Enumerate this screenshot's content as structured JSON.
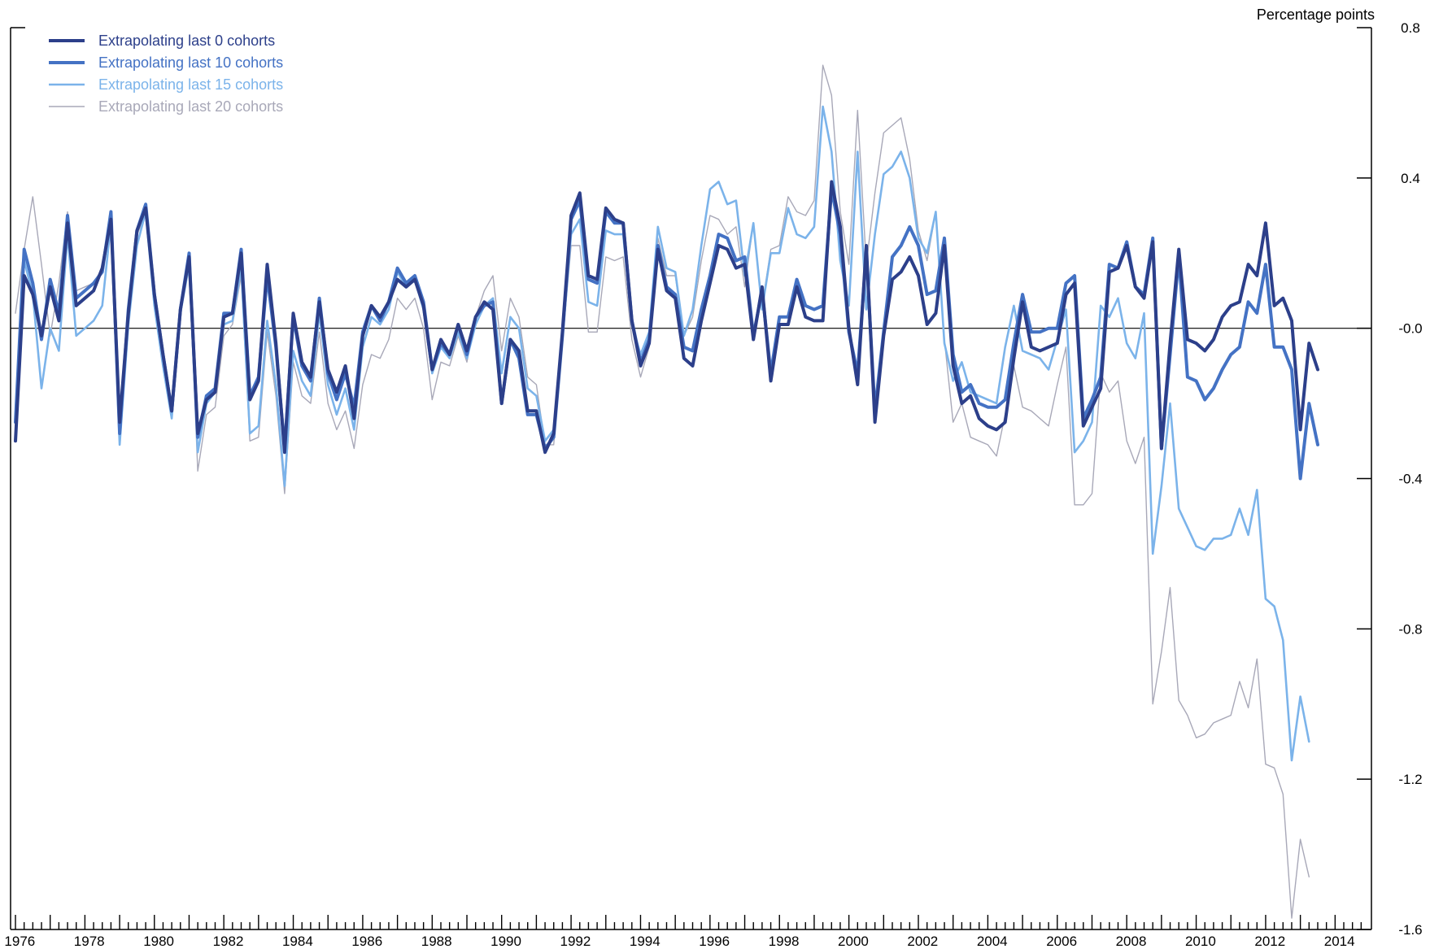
{
  "chart_data": {
    "type": "line",
    "unit_label": "Percentage points",
    "title": "",
    "xlabel": "",
    "ylabel": "",
    "y_axis_side": "right",
    "ylim": [
      -1.6,
      0.8
    ],
    "y_ticks": [
      0.8,
      0.4,
      -0.0,
      -0.4,
      -0.8,
      -1.2,
      -1.6
    ],
    "y_tick_labels": [
      "0.8",
      "0.4",
      "-0.0",
      "-0.4",
      "-0.8",
      "-1.2",
      "-1.6"
    ],
    "zero_line": true,
    "grid": false,
    "legend_position": "top-left",
    "x_tick_labels": [
      "1976",
      "1978",
      "1980",
      "1982",
      "1984",
      "1986",
      "1988",
      "1990",
      "1992",
      "1994",
      "1996",
      "1998",
      "2000",
      "2002",
      "2004",
      "2006",
      "2008",
      "2010",
      "2012",
      "2014"
    ],
    "x_start": "1975Q4",
    "x_end": "2014Q1",
    "frequency": "quarterly",
    "series": [
      {
        "name": "Extrapolating last 0 cohorts",
        "color": "#2c3f8a",
        "width": 4,
        "values": [
          -0.3,
          0.14,
          0.09,
          -0.02,
          0.11,
          0.02,
          0.28,
          0.06,
          0.08,
          0.1,
          0.16,
          0.29,
          -0.25,
          0.04,
          0.26,
          0.32,
          0.09,
          -0.07,
          -0.22,
          0.05,
          0.19,
          -0.28,
          -0.19,
          -0.17,
          0.03,
          0.04,
          0.2,
          -0.19,
          -0.14,
          0.17,
          -0.04,
          -0.33,
          0.04,
          -0.09,
          -0.13,
          0.07,
          -0.11,
          -0.17,
          -0.1,
          -0.24,
          -0.02,
          0.06,
          0.03,
          0.07,
          0.13,
          0.11,
          0.13,
          0.06,
          -0.11,
          -0.03,
          -0.07,
          0.01,
          -0.06,
          0.03,
          0.07,
          0.05,
          -0.2,
          -0.03,
          -0.06,
          -0.22,
          -0.22,
          -0.33,
          -0.28,
          -0.01,
          0.3,
          0.36,
          0.14,
          0.13,
          0.32,
          0.29,
          0.28,
          0.02,
          -0.1,
          -0.04,
          0.21,
          0.1,
          0.08,
          -0.08,
          -0.1,
          0.02,
          0.12,
          0.22,
          0.21,
          0.16,
          0.17,
          -0.03,
          0.11,
          -0.14,
          0.01,
          0.01,
          0.11,
          0.03,
          0.02,
          0.02,
          0.39,
          0.27,
          0.0,
          -0.15,
          0.22,
          -0.25,
          -0.02,
          0.13,
          0.15,
          0.19,
          0.14,
          0.01,
          0.04,
          0.22,
          -0.1,
          -0.2,
          -0.18,
          -0.24,
          -0.26,
          -0.27,
          -0.25,
          -0.08,
          0.07,
          -0.05,
          -0.06,
          -0.05,
          -0.04,
          0.09,
          0.12,
          -0.26,
          -0.21,
          -0.16,
          0.15,
          0.16,
          0.22,
          0.11,
          0.08,
          0.23,
          -0.32,
          -0.04,
          0.21,
          -0.03,
          -0.04,
          -0.06,
          -0.03,
          0.03,
          0.06,
          0.07,
          0.17,
          0.14,
          0.28,
          0.06,
          0.08,
          0.02,
          -0.27,
          -0.04,
          -0.11
        ]
      },
      {
        "name": "Extrapolating last 10 cohorts",
        "color": "#4472c4",
        "width": 4,
        "values": [
          -0.25,
          0.21,
          0.12,
          -0.03,
          0.13,
          0.04,
          0.3,
          0.08,
          0.1,
          0.12,
          0.15,
          0.31,
          -0.28,
          0.05,
          0.26,
          0.33,
          0.09,
          -0.07,
          -0.22,
          0.05,
          0.2,
          -0.29,
          -0.18,
          -0.16,
          0.04,
          0.04,
          0.21,
          -0.18,
          -0.13,
          0.14,
          -0.05,
          -0.32,
          0.03,
          -0.1,
          -0.14,
          0.08,
          -0.12,
          -0.19,
          -0.12,
          -0.21,
          -0.01,
          0.06,
          0.02,
          0.07,
          0.16,
          0.12,
          0.14,
          0.07,
          -0.11,
          -0.04,
          -0.07,
          0.01,
          -0.07,
          0.03,
          0.06,
          0.07,
          -0.2,
          -0.03,
          -0.08,
          -0.23,
          -0.23,
          -0.32,
          -0.29,
          -0.02,
          0.29,
          0.34,
          0.13,
          0.12,
          0.31,
          0.28,
          0.28,
          0.02,
          -0.09,
          -0.03,
          0.22,
          0.11,
          0.09,
          -0.05,
          -0.06,
          0.05,
          0.14,
          0.25,
          0.24,
          0.18,
          0.19,
          -0.02,
          0.1,
          -0.12,
          0.03,
          0.03,
          0.13,
          0.06,
          0.05,
          0.06,
          0.37,
          0.25,
          -0.01,
          -0.12,
          0.2,
          -0.22,
          -0.01,
          0.19,
          0.22,
          0.27,
          0.22,
          0.09,
          0.1,
          0.24,
          -0.07,
          -0.17,
          -0.15,
          -0.2,
          -0.21,
          -0.21,
          -0.19,
          -0.04,
          0.09,
          -0.01,
          -0.01,
          0.0,
          0.0,
          0.12,
          0.14,
          -0.24,
          -0.19,
          -0.13,
          0.17,
          0.16,
          0.23,
          0.11,
          0.09,
          0.24,
          -0.32,
          -0.07,
          0.19,
          -0.13,
          -0.14,
          -0.19,
          -0.16,
          -0.11,
          -0.07,
          -0.05,
          0.07,
          0.04,
          0.17,
          -0.05,
          -0.05,
          -0.11,
          -0.4,
          -0.2,
          -0.31
        ]
      },
      {
        "name": "Extrapolating last 15 cohorts",
        "color": "#7bb3ea",
        "width": 2.6,
        "values": [
          -0.23,
          0.18,
          0.09,
          -0.16,
          0.0,
          -0.06,
          0.25,
          -0.02,
          0.0,
          0.02,
          0.06,
          0.28,
          -0.31,
          0.01,
          0.22,
          0.31,
          0.06,
          -0.1,
          -0.24,
          0.04,
          0.17,
          -0.33,
          -0.2,
          -0.17,
          0.01,
          0.02,
          0.16,
          -0.28,
          -0.26,
          0.02,
          -0.15,
          -0.42,
          -0.06,
          -0.14,
          -0.18,
          0.04,
          -0.15,
          -0.23,
          -0.16,
          -0.27,
          -0.05,
          0.03,
          0.01,
          0.05,
          0.15,
          0.11,
          0.13,
          0.05,
          -0.12,
          -0.05,
          -0.08,
          -0.01,
          -0.08,
          0.01,
          0.06,
          0.08,
          -0.12,
          0.03,
          0.0,
          -0.16,
          -0.18,
          -0.3,
          -0.27,
          -0.03,
          0.25,
          0.29,
          0.07,
          0.06,
          0.26,
          0.25,
          0.25,
          0.01,
          -0.07,
          -0.01,
          0.27,
          0.16,
          0.15,
          -0.02,
          0.05,
          0.22,
          0.37,
          0.39,
          0.33,
          0.34,
          0.14,
          0.28,
          0.05,
          0.2,
          0.2,
          0.32,
          0.25,
          0.24,
          0.27,
          0.59,
          0.47,
          0.18,
          0.06,
          0.47,
          0.05,
          0.25,
          0.41,
          0.43,
          0.47,
          0.4,
          0.24,
          0.2,
          0.31,
          -0.04,
          -0.14,
          -0.09,
          -0.17,
          -0.18,
          -0.19,
          -0.2,
          -0.05,
          0.06,
          -0.06,
          -0.07,
          -0.08,
          -0.11,
          -0.03,
          0.05,
          -0.33,
          -0.3,
          -0.25,
          0.06,
          0.03,
          0.08,
          -0.04,
          -0.08,
          0.04,
          -0.6,
          -0.42,
          -0.2,
          -0.48,
          -0.53,
          -0.58,
          -0.59,
          -0.56,
          -0.56,
          -0.55,
          -0.48,
          -0.55,
          -0.43,
          -0.72,
          -0.74,
          -0.83,
          -1.15,
          -0.98,
          -1.1
        ]
      },
      {
        "name": "Extrapolating last 20 cohorts",
        "color": "#a8a8b8",
        "width": 1.4,
        "values": [
          0.04,
          0.21,
          0.35,
          0.17,
          -0.02,
          0.12,
          0.31,
          0.1,
          0.11,
          0.12,
          0.16,
          0.31,
          -0.25,
          0.05,
          0.25,
          0.3,
          0.09,
          -0.08,
          -0.22,
          0.04,
          0.18,
          -0.38,
          -0.23,
          -0.21,
          -0.02,
          0.01,
          0.14,
          -0.3,
          -0.29,
          -0.01,
          -0.18,
          -0.44,
          -0.09,
          -0.18,
          -0.2,
          -0.01,
          -0.2,
          -0.27,
          -0.22,
          -0.32,
          -0.15,
          -0.07,
          -0.08,
          -0.03,
          0.08,
          0.05,
          0.08,
          0.0,
          -0.19,
          -0.09,
          -0.1,
          -0.02,
          -0.09,
          0.03,
          0.1,
          0.14,
          -0.06,
          0.08,
          0.03,
          -0.13,
          -0.15,
          -0.31,
          -0.31,
          -0.04,
          0.22,
          0.22,
          -0.01,
          -0.01,
          0.19,
          0.18,
          0.19,
          -0.03,
          -0.13,
          -0.05,
          0.24,
          0.14,
          0.14,
          -0.02,
          0.03,
          0.18,
          0.3,
          0.29,
          0.25,
          0.27,
          0.11,
          0.28,
          0.06,
          0.21,
          0.22,
          0.35,
          0.31,
          0.3,
          0.34,
          0.7,
          0.62,
          0.31,
          0.17,
          0.58,
          0.17,
          0.36,
          0.52,
          0.54,
          0.56,
          0.45,
          0.26,
          0.18,
          0.31,
          -0.03,
          -0.25,
          -0.2,
          -0.29,
          -0.3,
          -0.31,
          -0.34,
          -0.23,
          -0.1,
          -0.21,
          -0.22,
          -0.24,
          -0.26,
          -0.15,
          -0.05,
          -0.47,
          -0.47,
          -0.44,
          -0.12,
          -0.17,
          -0.14,
          -0.3,
          -0.36,
          -0.29,
          -1.0,
          -0.86,
          -0.69,
          -0.99,
          -1.03,
          -1.09,
          -1.08,
          -1.05,
          -1.04,
          -1.03,
          -0.94,
          -1.01,
          -0.88,
          -1.16,
          -1.17,
          -1.24,
          -1.57,
          -1.36,
          -1.46
        ]
      }
    ]
  }
}
